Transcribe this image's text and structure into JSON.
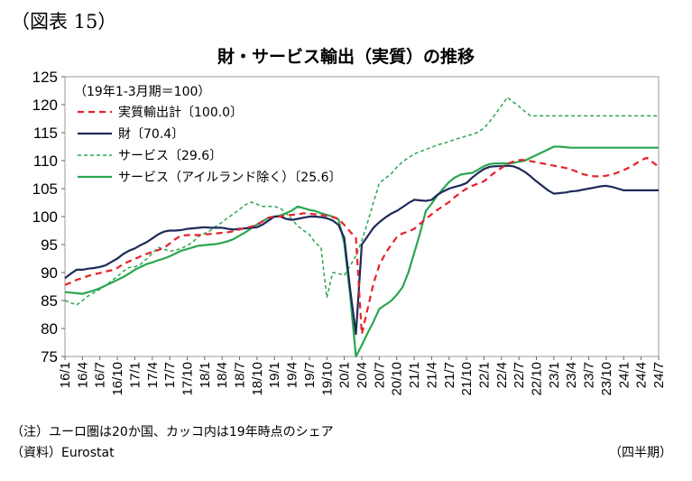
{
  "figure_label": "（図表 15）",
  "note": "（注）ユーロ圏は20か国、カッコ内は19年時点のシェア",
  "source": "（資料）Eurostat",
  "period_label": "（四半期）",
  "chart_data": {
    "type": "line",
    "title": "財・サービス輸出（実質）の推移",
    "subtitle": "（19年1-3月期＝100）",
    "xlabel": "",
    "ylabel": "",
    "ylim": [
      75,
      125
    ],
    "yticks": [
      75,
      80,
      85,
      90,
      95,
      100,
      105,
      110,
      115,
      120,
      125
    ],
    "grid": false,
    "legend_position": "top-left",
    "x": [
      "16/1",
      "16/2",
      "16/3",
      "16/4",
      "16/5",
      "16/6",
      "16/7",
      "16/8",
      "16/9",
      "16/10",
      "16/11",
      "16/12",
      "17/1",
      "17/2",
      "17/3",
      "17/4",
      "17/5",
      "17/6",
      "17/7",
      "17/8",
      "17/9",
      "17/10",
      "17/11",
      "17/12",
      "18/1",
      "18/2",
      "18/3",
      "18/4",
      "18/5",
      "18/6",
      "18/7",
      "18/8",
      "18/9",
      "18/10",
      "18/11",
      "18/12",
      "19/1",
      "19/2",
      "19/3",
      "19/4",
      "19/5",
      "19/6",
      "19/7",
      "19/8",
      "19/9",
      "19/10",
      "19/11",
      "19/12",
      "20/1",
      "20/2",
      "20/3",
      "20/4",
      "20/5",
      "20/6",
      "20/7",
      "20/8",
      "20/9",
      "20/10",
      "20/11",
      "20/12",
      "21/1",
      "21/2",
      "21/3",
      "21/4",
      "21/5",
      "21/6",
      "21/7",
      "21/8",
      "21/9",
      "21/10",
      "21/11",
      "21/12",
      "22/1",
      "22/2",
      "22/3",
      "22/4",
      "22/5",
      "22/6",
      "22/7",
      "22/8",
      "22/9",
      "22/10",
      "22/11",
      "22/12",
      "23/1",
      "23/2",
      "23/3",
      "23/4",
      "23/5",
      "23/6",
      "23/7",
      "23/8",
      "23/9",
      "23/10",
      "23/11",
      "23/12",
      "24/1",
      "24/2",
      "24/3",
      "24/4",
      "24/5",
      "24/6",
      "24/7"
    ],
    "xtick_labels": [
      "16/1",
      "16/4",
      "16/7",
      "16/10",
      "17/1",
      "17/4",
      "17/7",
      "17/10",
      "18/1",
      "18/4",
      "18/7",
      "18/10",
      "19/1",
      "19/4",
      "19/7",
      "19/10",
      "20/1",
      "20/4",
      "20/7",
      "20/10",
      "21/1",
      "21/4",
      "21/7",
      "21/10",
      "22/1",
      "22/4",
      "22/7",
      "22/10",
      "23/1",
      "23/4",
      "23/7",
      "23/10",
      "24/1",
      "24/4",
      "24/7"
    ],
    "series": [
      {
        "name": "実質輸出計〔100.0〕",
        "color": "#e8202a",
        "dash": "7,5",
        "width": 2.2,
        "values": [
          87.8,
          88.2,
          88.7,
          89.0,
          89.4,
          89.7,
          89.9,
          90.2,
          90.4,
          90.8,
          91.5,
          92.0,
          92.4,
          92.9,
          93.3,
          93.7,
          94.0,
          94.4,
          95.2,
          96.0,
          96.6,
          96.7,
          96.7,
          96.7,
          96.8,
          96.9,
          97.0,
          97.1,
          97.2,
          97.4,
          97.7,
          98.0,
          98.2,
          98.5,
          99.2,
          99.8,
          100.0,
          100.0,
          100.2,
          100.3,
          100.4,
          100.6,
          100.5,
          100.4,
          100.3,
          100.1,
          99.9,
          99.6,
          98.5,
          97.3,
          96.2,
          79.0,
          83.5,
          88.0,
          91.3,
          93.3,
          94.9,
          96.3,
          97.0,
          97.3,
          97.8,
          98.7,
          99.6,
          100.4,
          101.2,
          101.9,
          102.6,
          103.5,
          104.3,
          105.0,
          105.5,
          105.9,
          106.3,
          107.2,
          108.0,
          108.7,
          109.4,
          109.8,
          110.1,
          110.1,
          109.9,
          109.7,
          109.5,
          109.3,
          109.1,
          108.9,
          108.7,
          108.4,
          108.0,
          107.6,
          107.3,
          107.2,
          107.2,
          107.3,
          107.5,
          107.9,
          108.3,
          108.8,
          109.4,
          110.1,
          110.5,
          109.7,
          108.9
        ]
      },
      {
        "name": "財〔70.4〕",
        "color": "#1e2a5a",
        "dash": "",
        "width": 2.2,
        "values": [
          89.0,
          89.8,
          90.5,
          90.5,
          90.7,
          90.8,
          91.0,
          91.3,
          91.9,
          92.5,
          93.3,
          93.9,
          94.3,
          94.9,
          95.4,
          96.1,
          96.8,
          97.3,
          97.5,
          97.5,
          97.6,
          97.8,
          97.9,
          98.0,
          98.1,
          98.0,
          98.0,
          98.0,
          97.8,
          97.7,
          97.8,
          97.9,
          98.0,
          98.1,
          98.6,
          99.3,
          100.0,
          100.0,
          99.6,
          99.4,
          99.6,
          99.8,
          100.0,
          100.0,
          99.9,
          99.7,
          99.3,
          98.5,
          96.2,
          87.0,
          79.0,
          95.0,
          96.5,
          98.0,
          99.0,
          99.8,
          100.5,
          101.0,
          101.7,
          102.4,
          103.0,
          102.9,
          102.8,
          103.0,
          103.9,
          104.5,
          105.0,
          105.3,
          105.6,
          106.0,
          107.0,
          107.8,
          108.5,
          108.9,
          109.0,
          109.0,
          109.1,
          109.0,
          108.6,
          108.0,
          107.2,
          106.3,
          105.5,
          104.7,
          104.1,
          104.2,
          104.3,
          104.5,
          104.6,
          104.8,
          105.0,
          105.2,
          105.4,
          105.5,
          105.3,
          105.0,
          104.7,
          104.7,
          104.7,
          104.7,
          104.7,
          104.7,
          104.7
        ]
      },
      {
        "name": "サービス〔29.6〕",
        "color": "#2aa650",
        "dash": "4,3",
        "width": 1.5,
        "values": [
          85.0,
          84.6,
          84.2,
          85.0,
          85.8,
          86.4,
          87.0,
          87.7,
          88.5,
          89.3,
          90.2,
          90.9,
          91.0,
          91.5,
          92.4,
          93.4,
          94.5,
          94.2,
          93.8,
          94.0,
          94.3,
          94.8,
          95.5,
          96.5,
          97.0,
          97.5,
          98.3,
          99.0,
          99.8,
          100.5,
          101.3,
          102.1,
          102.6,
          102.2,
          101.8,
          101.8,
          101.8,
          101.5,
          100.6,
          99.5,
          98.3,
          97.5,
          96.8,
          95.3,
          94.5,
          85.5,
          90.0,
          89.8,
          89.5,
          91.2,
          93.0,
          95.7,
          99.0,
          102.5,
          106.0,
          106.8,
          107.6,
          108.8,
          109.8,
          110.5,
          111.2,
          111.6,
          112.0,
          112.4,
          112.8,
          113.1,
          113.4,
          113.8,
          114.1,
          114.4,
          114.7,
          115.1,
          115.8,
          117.0,
          118.4,
          119.8,
          121.3,
          120.5,
          119.7,
          118.8,
          118.0,
          118.0,
          118.0,
          118.0,
          118.0,
          118.0,
          118.0,
          118.0,
          118.0,
          118.0,
          118.0,
          118.0,
          118.0,
          118.0,
          118.0,
          118.0,
          118.0,
          118.0,
          118.0,
          118.0,
          118.0,
          118.0,
          118.0
        ]
      },
      {
        "name": "サービス（アイルランド除く）〔25.6〕",
        "color": "#2aa650",
        "dash": "",
        "width": 2.2,
        "values": [
          86.5,
          86.4,
          86.3,
          86.2,
          86.5,
          86.8,
          87.2,
          87.7,
          88.2,
          88.7,
          89.2,
          89.8,
          90.5,
          91.0,
          91.5,
          91.8,
          92.2,
          92.5,
          92.9,
          93.4,
          93.9,
          94.2,
          94.5,
          94.8,
          94.9,
          95.0,
          95.1,
          95.3,
          95.6,
          96.0,
          96.6,
          97.2,
          97.9,
          98.6,
          99.2,
          99.8,
          100.0,
          100.2,
          100.6,
          101.1,
          101.8,
          101.5,
          101.2,
          101.0,
          100.6,
          100.3,
          100.0,
          99.5,
          95.2,
          86.0,
          75.0,
          77.0,
          79.2,
          81.2,
          83.5,
          84.2,
          84.9,
          86.0,
          87.4,
          90.0,
          93.5,
          97.0,
          101.0,
          102.3,
          103.8,
          105.0,
          106.2,
          107.0,
          107.5,
          107.7,
          107.8,
          108.4,
          109.0,
          109.4,
          109.5,
          109.5,
          109.5,
          109.6,
          109.8,
          110.0,
          110.5,
          111.0,
          111.5,
          112.0,
          112.5,
          112.5,
          112.4,
          112.3,
          112.3,
          112.3,
          112.3,
          112.3,
          112.3,
          112.3,
          112.3,
          112.3,
          112.3,
          112.3,
          112.3,
          112.3,
          112.3,
          112.3,
          112.3
        ]
      }
    ]
  }
}
